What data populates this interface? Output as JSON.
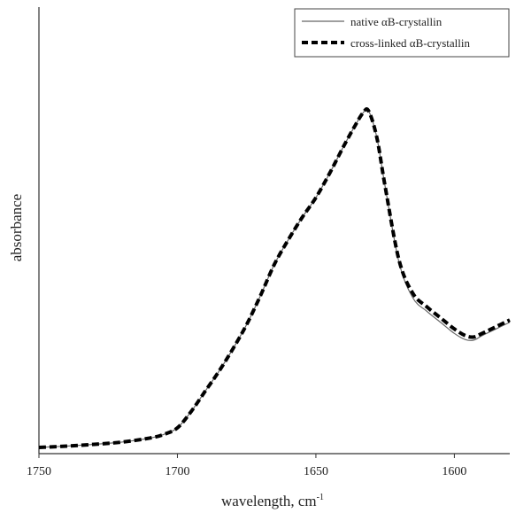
{
  "chart_data": {
    "type": "line",
    "title": "",
    "xlabel": "wavelength, cm",
    "xlabel_superscript": "-1",
    "ylabel": "absorbance",
    "xlim": [
      1750,
      1580
    ],
    "x_reversed": true,
    "ylim": [
      0,
      1
    ],
    "y_ticks_shown": false,
    "x_ticks": [
      1750,
      1700,
      1650,
      1600
    ],
    "x_tick_labels": [
      "1750",
      "1700",
      "1650",
      "1600"
    ],
    "grid": false,
    "legend_position": "top-right",
    "series": [
      {
        "name": "native αB-crystallin",
        "style": "solid-thin",
        "color": "#666666",
        "x": [
          1750,
          1740,
          1730,
          1720,
          1710,
          1705,
          1700,
          1695,
          1690,
          1685,
          1680,
          1675,
          1670,
          1665,
          1660,
          1655,
          1650,
          1645,
          1640,
          1636,
          1633,
          1631,
          1628,
          1625,
          1620,
          1615,
          1610,
          1605,
          1600,
          1596,
          1593,
          1590,
          1585,
          1580
        ],
        "y": [
          0.004,
          0.007,
          0.011,
          0.016,
          0.025,
          0.033,
          0.048,
          0.085,
          0.13,
          0.175,
          0.225,
          0.28,
          0.345,
          0.415,
          0.47,
          0.52,
          0.565,
          0.62,
          0.68,
          0.725,
          0.755,
          0.76,
          0.7,
          0.59,
          0.42,
          0.34,
          0.31,
          0.285,
          0.26,
          0.246,
          0.245,
          0.255,
          0.27,
          0.285
        ]
      },
      {
        "name": "cross-linked αB-crystallin",
        "style": "dashed-thick",
        "color": "#000000",
        "x": [
          1750,
          1740,
          1730,
          1720,
          1710,
          1705,
          1700,
          1695,
          1690,
          1685,
          1680,
          1675,
          1670,
          1665,
          1660,
          1655,
          1650,
          1645,
          1640,
          1636,
          1633,
          1631,
          1628,
          1625,
          1620,
          1615,
          1610,
          1605,
          1600,
          1596,
          1593,
          1590,
          1585,
          1580
        ],
        "y": [
          0.004,
          0.007,
          0.011,
          0.016,
          0.025,
          0.033,
          0.048,
          0.085,
          0.13,
          0.175,
          0.225,
          0.28,
          0.345,
          0.415,
          0.47,
          0.52,
          0.565,
          0.62,
          0.68,
          0.725,
          0.755,
          0.76,
          0.7,
          0.59,
          0.425,
          0.35,
          0.32,
          0.295,
          0.27,
          0.255,
          0.252,
          0.26,
          0.275,
          0.29
        ]
      }
    ]
  }
}
